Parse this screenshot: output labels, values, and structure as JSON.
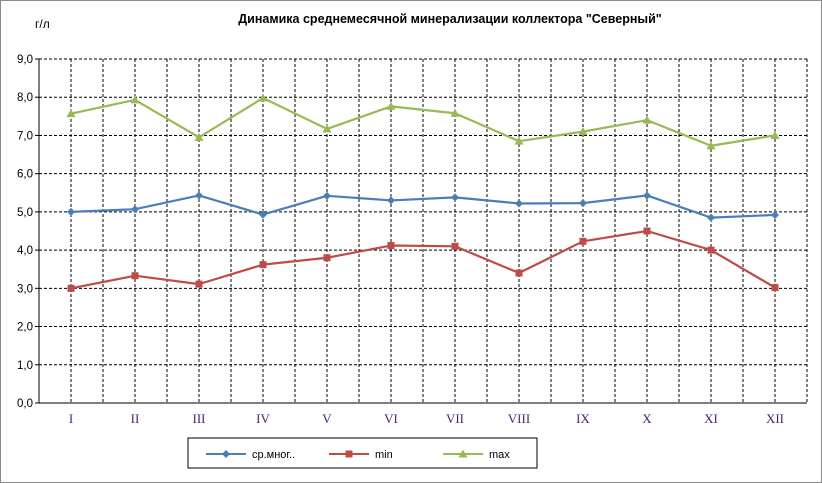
{
  "chart_data": {
    "type": "line",
    "title": "Динамика среднемесячной минерализации коллектора \"Северный\"",
    "y_unit": "г/л",
    "xlabel": "",
    "ylabel": "",
    "ylim": [
      0,
      9
    ],
    "y_ticks": [
      "0,0",
      "1,0",
      "2,0",
      "3,0",
      "4,0",
      "5,0",
      "6,0",
      "7,0",
      "8,0",
      "9,0"
    ],
    "categories": [
      "I",
      "II",
      "III",
      "IV",
      "V",
      "VI",
      "VII",
      "VIII",
      "IX",
      "X",
      "XI",
      "XII"
    ],
    "grid": "dashed",
    "legend_position": "bottom",
    "series": [
      {
        "name": "ср.мног..",
        "color": "#4a7ebb",
        "marker": "diamond",
        "values": [
          5.0,
          5.07,
          5.43,
          4.93,
          5.42,
          5.3,
          5.38,
          5.22,
          5.23,
          5.43,
          4.85,
          4.92
        ]
      },
      {
        "name": "min",
        "color": "#be4b48",
        "marker": "square",
        "values": [
          3.0,
          3.33,
          3.11,
          3.62,
          3.8,
          4.12,
          4.1,
          3.4,
          4.23,
          4.5,
          4.0,
          3.02
        ]
      },
      {
        "name": "max",
        "color": "#98b954",
        "marker": "triangle",
        "values": [
          7.57,
          7.93,
          6.95,
          7.98,
          7.17,
          7.76,
          7.58,
          6.85,
          7.1,
          7.4,
          6.73,
          7.0
        ]
      }
    ]
  }
}
